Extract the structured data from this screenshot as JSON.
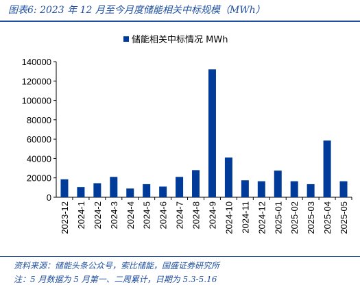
{
  "figure": {
    "title": "图表6:  2023 年 12 月至今月度储能相关中标规模（MWh）",
    "source": "资料来源：储能头条公众号，索比储能，国盛证券研究所",
    "note": "注：5 月数据为 5 月第一、二周累计，日期为 5.3-5.16"
  },
  "colors": {
    "bar": "#003b9a",
    "accent": "#1f4fa0",
    "axis": "#000000"
  },
  "chart_data": {
    "type": "bar",
    "categories": [
      "2023-12",
      "2024-1",
      "2024-2",
      "2024-3",
      "2024-4",
      "2024-5",
      "2024-6",
      "2024-7",
      "2024-8",
      "2024-9",
      "2024-10",
      "2024-11",
      "2024-12",
      "2025-01",
      "2025-02",
      "2025-03",
      "2025-04",
      "2025-05"
    ],
    "series": [
      {
        "name": "储能相关中标情况 MWh",
        "values": [
          18500,
          10500,
          14500,
          21000,
          9000,
          13500,
          11000,
          21000,
          28000,
          132000,
          41000,
          17500,
          16500,
          27500,
          16500,
          13500,
          58500,
          16500
        ]
      }
    ],
    "ylim": [
      0,
      140000
    ],
    "yticks": [
      "0",
      "20000",
      "40000",
      "60000",
      "80000",
      "100000",
      "120000",
      "140000"
    ],
    "legend_position": "top-center",
    "grid": false
  }
}
